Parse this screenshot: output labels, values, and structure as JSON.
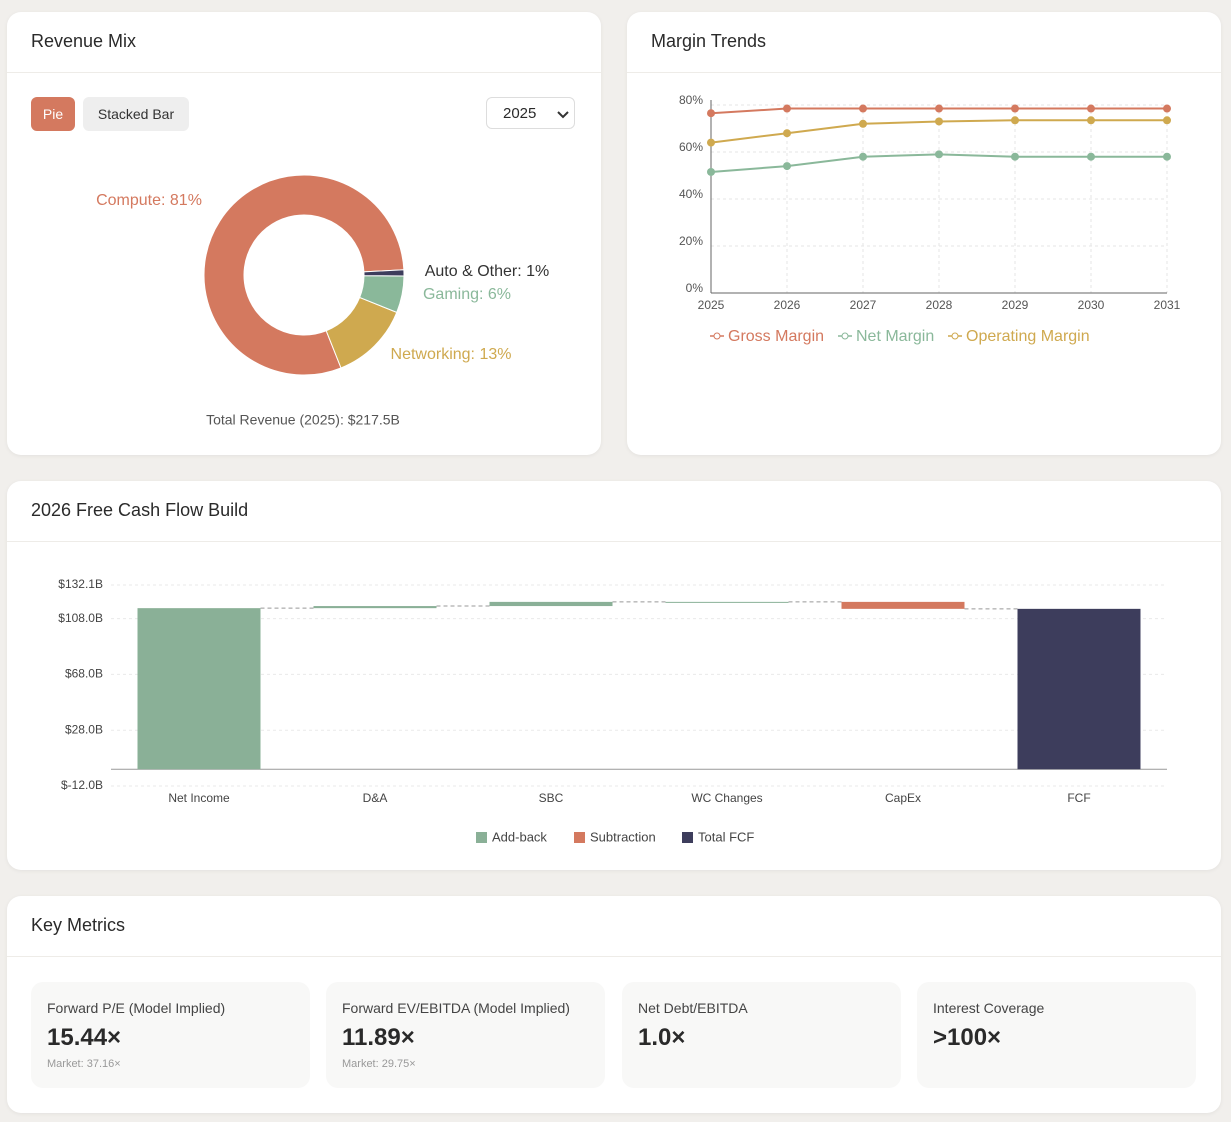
{
  "chart_data": [
    {
      "type": "pie",
      "title": "Revenue Mix",
      "donut": true,
      "categories": [
        "Compute",
        "Networking",
        "Gaming",
        "Auto & Other"
      ],
      "values": [
        81,
        13,
        6,
        1
      ],
      "value_labels": [
        "Compute: 81%",
        "Networking: 13%",
        "Gaming: 6%",
        "Auto & Other: 1%"
      ],
      "colors": [
        "#d4795f",
        "#cfa94f",
        "#8ab89a",
        "#3d3d5c"
      ],
      "note": "Total Revenue (2025): $217.5B"
    },
    {
      "type": "line",
      "title": "Margin Trends",
      "categories": [
        "2025",
        "2026",
        "2027",
        "2028",
        "2029",
        "2030",
        "2031"
      ],
      "ylim": [
        0,
        80
      ],
      "yticks": [
        {
          "value": 0,
          "label": "0%"
        },
        {
          "value": 20,
          "label": "20%"
        },
        {
          "value": 40,
          "label": "40%"
        },
        {
          "value": 60,
          "label": "60%"
        },
        {
          "value": 80,
          "label": "80%"
        }
      ],
      "grid": true,
      "series": [
        {
          "name": "Gross Margin",
          "color": "#d4795f",
          "values": [
            76.5,
            78.5,
            78.5,
            78.5,
            78.5,
            78.5,
            78.5
          ]
        },
        {
          "name": "Net Margin",
          "color": "#8ab89a",
          "values": [
            51.5,
            54,
            58,
            59,
            58,
            58,
            58
          ]
        },
        {
          "name": "Operating Margin",
          "color": "#cfa94f",
          "values": [
            64,
            68,
            72,
            73,
            73.5,
            73.5,
            73.5
          ]
        }
      ]
    },
    {
      "type": "waterfall",
      "title": "2026 Free Cash Flow Build",
      "categories": [
        "Net Income",
        "D&A",
        "SBC",
        "WC Changes",
        "CapEx",
        "FCF"
      ],
      "ylim": [
        -12,
        132.1
      ],
      "yticks": [
        {
          "value": -12,
          "label": "$-12.0B"
        },
        {
          "value": 28,
          "label": "$28.0B"
        },
        {
          "value": 68,
          "label": "$68.0B"
        },
        {
          "value": 108,
          "label": "$108.0B"
        },
        {
          "value": 132.1,
          "label": "$132.1B"
        }
      ],
      "grid": true,
      "series": [
        {
          "name": "Add-back",
          "color": "#8ab097",
          "values": [
            115.5,
            1.5,
            3,
            0,
            null,
            null
          ]
        },
        {
          "name": "Subtraction",
          "color": "#d4795f",
          "values": [
            null,
            null,
            null,
            null,
            -5,
            null
          ]
        },
        {
          "name": "Total FCF",
          "color": "#3d3d5c",
          "total": true,
          "values": [
            null,
            null,
            null,
            null,
            null,
            115
          ]
        }
      ]
    }
  ],
  "revenue_controls": {
    "tabs": [
      "Pie",
      "Stacked Bar"
    ],
    "year": "2025"
  },
  "key_metrics": {
    "title": "Key Metrics",
    "cards": [
      {
        "label": "Forward P/E (Model Implied)",
        "value": "15.44×",
        "market": "Market: 37.16×"
      },
      {
        "label": "Forward EV/EBITDA (Model Implied)",
        "value": "11.89×",
        "market": "Market: 29.75×"
      },
      {
        "label": "Net Debt/EBITDA",
        "value": "1.0×"
      },
      {
        "label": "Interest Coverage",
        "value": ">100×"
      }
    ]
  }
}
